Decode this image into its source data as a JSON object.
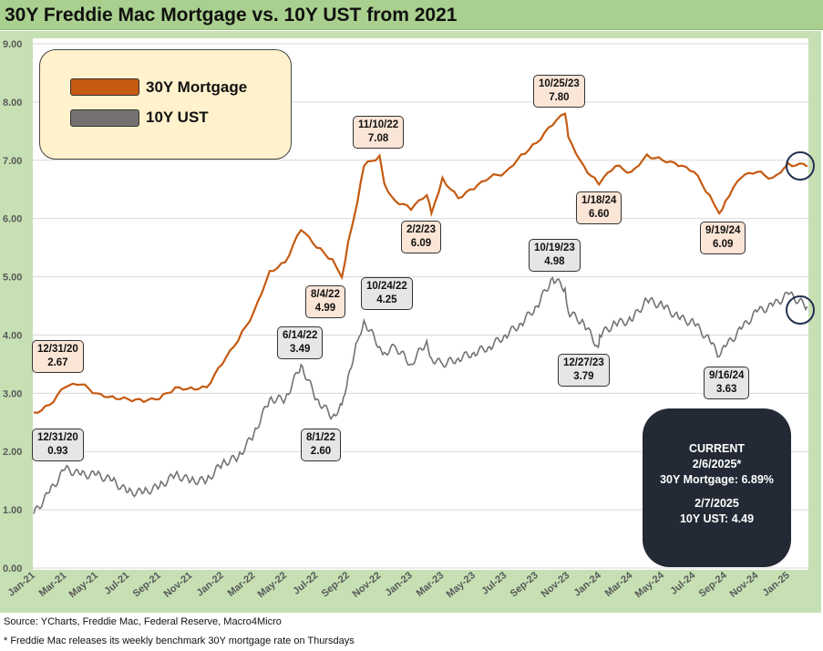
{
  "title": "30Y Freddie Mac Mortgage vs. 10Y UST from 2021",
  "legend": {
    "mortgage": "30Y Mortgage",
    "ust": "10Y UST"
  },
  "colors": {
    "mortgage": "#c55a11",
    "ust": "#767171",
    "frame": "#c6e0b4",
    "title_bar": "#a9d08e"
  },
  "annotations": {
    "m1": {
      "date": "12/31/20",
      "value": "2.67"
    },
    "m2": {
      "date": "8/4/22",
      "value": "4.99"
    },
    "m3": {
      "date": "11/10/22",
      "value": "7.08"
    },
    "m4": {
      "date": "2/2/23",
      "value": "6.09"
    },
    "m5": {
      "date": "10/25/23",
      "value": "7.80"
    },
    "m6": {
      "date": "1/18/24",
      "value": "6.60"
    },
    "m7": {
      "date": "9/19/24",
      "value": "6.09"
    },
    "t1": {
      "date": "12/31/20",
      "value": "0.93"
    },
    "t2": {
      "date": "6/14/22",
      "value": "3.49"
    },
    "t3": {
      "date": "8/1/22",
      "value": "2.60"
    },
    "t4": {
      "date": "10/24/22",
      "value": "4.25"
    },
    "t5": {
      "date": "10/19/23",
      "value": "4.98"
    },
    "t6": {
      "date": "12/27/23",
      "value": "3.79"
    },
    "t7": {
      "date": "9/16/24",
      "value": "3.63"
    }
  },
  "current": {
    "heading": "CURRENT",
    "date1": "2/6/2025*",
    "line1": "30Y Mortgage: 6.89%",
    "date2": "2/7/2025",
    "line2": "10Y UST: 4.49"
  },
  "footer": {
    "source": "Source: YCharts, Freddie Mac, Federal Reserve, Macro4Micro",
    "note": "* Freddie Mac releases its weekly benchmark 30Y mortgage rate on Thursdays"
  },
  "chart_data": {
    "type": "line",
    "title": "30Y Freddie Mac Mortgage vs. 10Y UST from 2021",
    "ylim": [
      0,
      9
    ],
    "yticks": [
      "0.00",
      "1.00",
      "2.00",
      "3.00",
      "4.00",
      "5.00",
      "6.00",
      "7.00",
      "8.00",
      "9.00"
    ],
    "xticks": [
      "Jan-21",
      "Mar-21",
      "May-21",
      "Jul-21",
      "Sep-21",
      "Nov-21",
      "Jan-22",
      "Mar-22",
      "May-22",
      "Jul-22",
      "Sep-22",
      "Nov-22",
      "Jan-23",
      "Mar-23",
      "May-23",
      "Jul-23",
      "Sep-23",
      "Nov-23",
      "Jan-24",
      "Mar-24",
      "May-24",
      "Jul-24",
      "Sep-24",
      "Nov-24",
      "Jan-25"
    ],
    "x_months_from_jan21": [
      0,
      1,
      2,
      3,
      4,
      5,
      6,
      7,
      8,
      9,
      10,
      11,
      12,
      13,
      14,
      15,
      16,
      17,
      18,
      19,
      19.6,
      20,
      20.6,
      21,
      22,
      22.3,
      23,
      24,
      25,
      25.3,
      26,
      27,
      28,
      29,
      30,
      31,
      32,
      33,
      33.8,
      34,
      35,
      35.9,
      36,
      37,
      38,
      39,
      40,
      41,
      42,
      43,
      43.6,
      44,
      45,
      46,
      47,
      48,
      49.2
    ],
    "series": [
      {
        "name": "30Y Mortgage",
        "values": [
          2.67,
          2.8,
          3.1,
          3.15,
          3.0,
          2.95,
          2.9,
          2.85,
          2.9,
          3.1,
          3.1,
          3.1,
          3.5,
          3.9,
          4.4,
          5.1,
          5.25,
          5.8,
          5.5,
          5.3,
          4.99,
          5.6,
          6.3,
          6.9,
          7.08,
          6.6,
          6.3,
          6.15,
          6.4,
          6.09,
          6.7,
          6.35,
          6.5,
          6.7,
          6.8,
          7.1,
          7.3,
          7.6,
          7.8,
          7.4,
          6.9,
          6.6,
          6.6,
          6.9,
          6.8,
          7.1,
          7.0,
          6.9,
          6.8,
          6.4,
          6.09,
          6.3,
          6.7,
          6.8,
          6.7,
          6.95,
          6.89
        ]
      },
      {
        "name": "10Y UST",
        "values": [
          0.93,
          1.3,
          1.7,
          1.6,
          1.6,
          1.5,
          1.3,
          1.3,
          1.4,
          1.6,
          1.5,
          1.5,
          1.8,
          1.9,
          2.3,
          2.9,
          2.9,
          3.49,
          2.9,
          2.6,
          2.8,
          3.3,
          3.9,
          4.25,
          3.8,
          3.7,
          3.8,
          3.5,
          3.9,
          3.6,
          3.5,
          3.6,
          3.7,
          3.8,
          4.0,
          4.2,
          4.5,
          4.98,
          4.8,
          4.4,
          4.2,
          3.79,
          4.0,
          4.2,
          4.25,
          4.6,
          4.5,
          4.3,
          4.2,
          3.9,
          3.63,
          3.8,
          4.1,
          4.4,
          4.5,
          4.7,
          4.49
        ]
      }
    ]
  }
}
